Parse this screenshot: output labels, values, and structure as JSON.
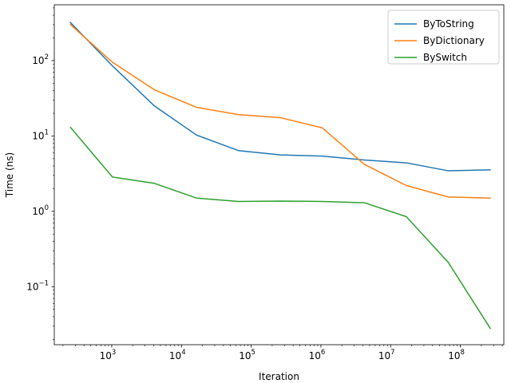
{
  "chart_data": {
    "type": "line",
    "title": "",
    "xlabel": "Iteration",
    "ylabel": "Time (ns)",
    "xscale": "log",
    "yscale": "log",
    "xlim": [
      150,
      420000000
    ],
    "ylim": [
      0.017,
      550
    ],
    "grid": false,
    "legend_position": "top-right",
    "x": [
      256,
      1024,
      4096,
      16384,
      65536,
      262144,
      1048576,
      4194304,
      16777216,
      67108864,
      268435456
    ],
    "x_ticks": [
      {
        "value": 1000,
        "base": "10",
        "exp": "3"
      },
      {
        "value": 10000,
        "base": "10",
        "exp": "4"
      },
      {
        "value": 100000,
        "base": "10",
        "exp": "5"
      },
      {
        "value": 1000000,
        "base": "10",
        "exp": "6"
      },
      {
        "value": 10000000,
        "base": "10",
        "exp": "7"
      },
      {
        "value": 100000000,
        "base": "10",
        "exp": "8"
      }
    ],
    "y_ticks": [
      {
        "value": 0.1,
        "base": "10",
        "exp": "−1"
      },
      {
        "value": 1,
        "base": "10",
        "exp": "0"
      },
      {
        "value": 10,
        "base": "10",
        "exp": "1"
      },
      {
        "value": 100,
        "base": "10",
        "exp": "2"
      }
    ],
    "series": [
      {
        "name": "ByToString",
        "color": "#1f77b4",
        "values": [
          320,
          85,
          25,
          10.3,
          6.4,
          5.6,
          5.4,
          4.8,
          4.4,
          3.45,
          3.55
        ]
      },
      {
        "name": "ByDictionary",
        "color": "#ff7f0e",
        "values": [
          300,
          95,
          41,
          24,
          19.2,
          17.5,
          12.8,
          4.2,
          2.2,
          1.55,
          1.5
        ]
      },
      {
        "name": "BySwitch",
        "color": "#2ca02c",
        "values": [
          13,
          2.85,
          2.35,
          1.5,
          1.35,
          1.37,
          1.35,
          1.3,
          0.85,
          0.21,
          0.028
        ]
      }
    ]
  }
}
